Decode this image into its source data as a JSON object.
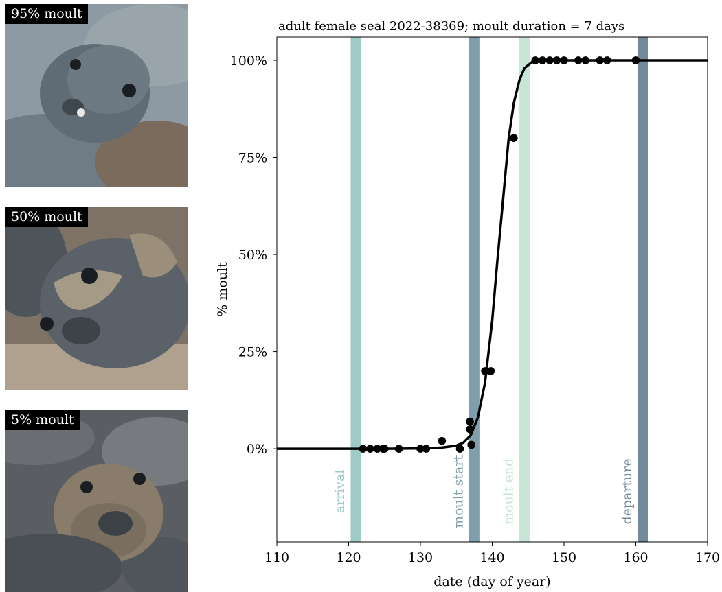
{
  "photos": [
    {
      "label": "95% moult"
    },
    {
      "label": "50% moult"
    },
    {
      "label": "5% moult"
    }
  ],
  "chart_data": {
    "type": "scatter",
    "title": "adult female seal 2022-38369; moult duration = 7 days",
    "xlabel": "date (day of year)",
    "ylabel": "% moult",
    "xlim": [
      110,
      170
    ],
    "ylim": [
      -24,
      106
    ],
    "xticks": [
      110,
      120,
      130,
      140,
      150,
      160,
      170
    ],
    "yticks": [
      0,
      25,
      50,
      75,
      100
    ],
    "ytick_labels": [
      "0%",
      "25%",
      "50%",
      "75%",
      "100%"
    ],
    "grid": false,
    "points": [
      {
        "x": 122,
        "y": 0
      },
      {
        "x": 123,
        "y": 0
      },
      {
        "x": 124,
        "y": 0
      },
      {
        "x": 124.8,
        "y": 0
      },
      {
        "x": 125,
        "y": 0
      },
      {
        "x": 127,
        "y": 0
      },
      {
        "x": 130,
        "y": 0
      },
      {
        "x": 130.8,
        "y": 0
      },
      {
        "x": 133,
        "y": 2
      },
      {
        "x": 135.5,
        "y": 0
      },
      {
        "x": 136.9,
        "y": 7
      },
      {
        "x": 136.9,
        "y": 5
      },
      {
        "x": 137.1,
        "y": 1
      },
      {
        "x": 139,
        "y": 20
      },
      {
        "x": 139.8,
        "y": 20
      },
      {
        "x": 143,
        "y": 80
      },
      {
        "x": 146,
        "y": 100
      },
      {
        "x": 147,
        "y": 100
      },
      {
        "x": 148,
        "y": 100
      },
      {
        "x": 149,
        "y": 100
      },
      {
        "x": 150,
        "y": 100
      },
      {
        "x": 152,
        "y": 100
      },
      {
        "x": 153,
        "y": 100
      },
      {
        "x": 155,
        "y": 100
      },
      {
        "x": 156,
        "y": 100
      },
      {
        "x": 160,
        "y": 100
      }
    ],
    "fit_curve": {
      "description": "logistic fit",
      "x": [
        110,
        125,
        130,
        133,
        135,
        136,
        137,
        138,
        139,
        140,
        140.7,
        141.5,
        142.3,
        143,
        143.8,
        144.5,
        145.5,
        147,
        150,
        170
      ],
      "y": [
        0,
        0,
        0.1,
        0.3,
        0.8,
        1.6,
        3.5,
        8,
        17,
        33,
        48,
        64,
        80,
        89,
        95,
        98,
        99.5,
        100,
        100,
        100
      ]
    },
    "vlines": [
      {
        "x": 121,
        "label": "arrival",
        "color": "#9ecbc6"
      },
      {
        "x": 137.5,
        "label": "moult start",
        "color": "#7f9fad"
      },
      {
        "x": 144.5,
        "label": "moult end",
        "color": "#c8e6d8"
      },
      {
        "x": 161,
        "label": "departure",
        "color": "#718a9c"
      }
    ],
    "vline_label_y": -11
  }
}
